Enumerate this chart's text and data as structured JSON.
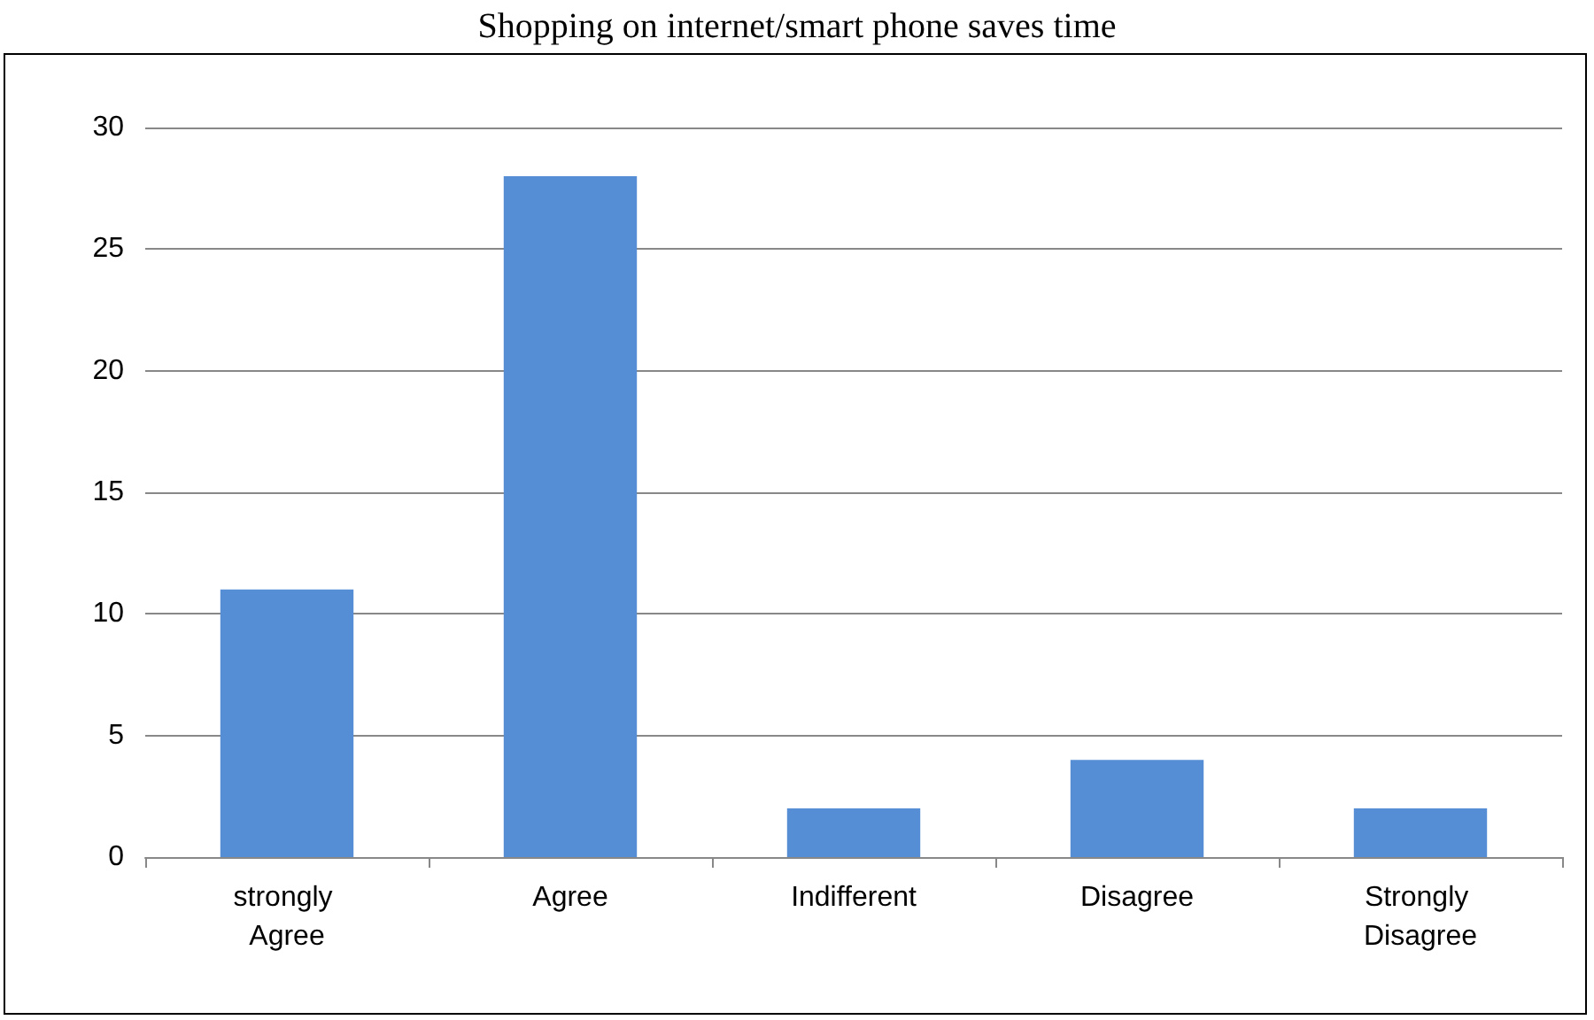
{
  "chart_data": {
    "type": "bar",
    "title": "Shopping on internet/smart phone saves time",
    "categories": [
      "strongly Agree",
      "Agree",
      "Indifferent",
      "Disagree",
      "Strongly Disagree"
    ],
    "values": [
      11,
      28,
      2,
      4,
      2
    ],
    "color": "#558ed5",
    "ylim": [
      0,
      30
    ],
    "yticks": [
      0,
      5,
      10,
      15,
      20,
      25,
      30
    ],
    "grid": "y"
  }
}
